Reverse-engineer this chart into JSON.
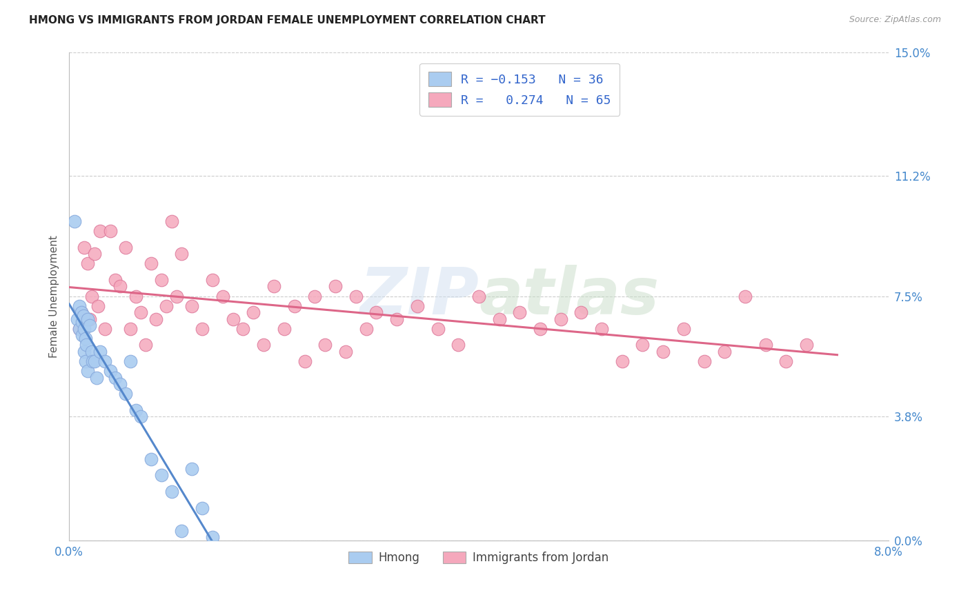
{
  "title": "HMONG VS IMMIGRANTS FROM JORDAN FEMALE UNEMPLOYMENT CORRELATION CHART",
  "source": "Source: ZipAtlas.com",
  "ylabel": "Female Unemployment",
  "y_tick_values": [
    0.0,
    3.8,
    7.5,
    11.2,
    15.0
  ],
  "x_min": 0.0,
  "x_max": 8.0,
  "y_min": 0.0,
  "y_max": 15.0,
  "hmong_R": -0.153,
  "hmong_N": 36,
  "jordan_R": 0.274,
  "jordan_N": 65,
  "hmong_color": "#aaccf0",
  "jordan_color": "#f5a8bc",
  "hmong_edge": "#88aadd",
  "jordan_edge": "#dd7799",
  "trend_hmong_color": "#5588cc",
  "trend_jordan_color": "#dd6688",
  "background_color": "#ffffff",
  "grid_color": "#cccccc",
  "legend_label_hmong": "Hmong",
  "legend_label_jordan": "Immigrants from Jordan",
  "hmong_x": [
    0.05,
    0.08,
    0.1,
    0.1,
    0.12,
    0.13,
    0.13,
    0.14,
    0.15,
    0.15,
    0.16,
    0.16,
    0.17,
    0.18,
    0.18,
    0.2,
    0.22,
    0.23,
    0.25,
    0.27,
    0.3,
    0.35,
    0.4,
    0.45,
    0.5,
    0.55,
    0.6,
    0.65,
    0.7,
    0.8,
    0.9,
    1.0,
    1.1,
    1.2,
    1.3,
    1.4
  ],
  "hmong_y": [
    9.8,
    6.8,
    7.2,
    6.5,
    7.0,
    6.7,
    6.3,
    6.9,
    6.5,
    5.8,
    6.2,
    5.5,
    6.0,
    6.8,
    5.2,
    6.6,
    5.8,
    5.5,
    5.5,
    5.0,
    5.8,
    5.5,
    5.2,
    5.0,
    4.8,
    4.5,
    5.5,
    4.0,
    3.8,
    2.5,
    2.0,
    1.5,
    0.3,
    2.2,
    1.0,
    0.1
  ],
  "jordan_x": [
    0.1,
    0.12,
    0.15,
    0.18,
    0.2,
    0.22,
    0.25,
    0.28,
    0.3,
    0.35,
    0.4,
    0.45,
    0.5,
    0.55,
    0.6,
    0.65,
    0.7,
    0.75,
    0.8,
    0.85,
    0.9,
    0.95,
    1.0,
    1.05,
    1.1,
    1.2,
    1.3,
    1.4,
    1.5,
    1.6,
    1.7,
    1.8,
    1.9,
    2.0,
    2.1,
    2.2,
    2.3,
    2.4,
    2.5,
    2.6,
    2.7,
    2.8,
    2.9,
    3.0,
    3.2,
    3.4,
    3.6,
    3.8,
    4.0,
    4.2,
    4.4,
    4.6,
    4.8,
    5.0,
    5.2,
    5.4,
    5.6,
    5.8,
    6.0,
    6.2,
    6.4,
    6.6,
    6.8,
    7.0,
    7.2
  ],
  "jordan_y": [
    6.5,
    7.0,
    9.0,
    8.5,
    6.8,
    7.5,
    8.8,
    7.2,
    9.5,
    6.5,
    9.5,
    8.0,
    7.8,
    9.0,
    6.5,
    7.5,
    7.0,
    6.0,
    8.5,
    6.8,
    8.0,
    7.2,
    9.8,
    7.5,
    8.8,
    7.2,
    6.5,
    8.0,
    7.5,
    6.8,
    6.5,
    7.0,
    6.0,
    7.8,
    6.5,
    7.2,
    5.5,
    7.5,
    6.0,
    7.8,
    5.8,
    7.5,
    6.5,
    7.0,
    6.8,
    7.2,
    6.5,
    6.0,
    7.5,
    6.8,
    7.0,
    6.5,
    6.8,
    7.0,
    6.5,
    5.5,
    6.0,
    5.8,
    6.5,
    5.5,
    5.8,
    7.5,
    6.0,
    5.5,
    6.0
  ]
}
